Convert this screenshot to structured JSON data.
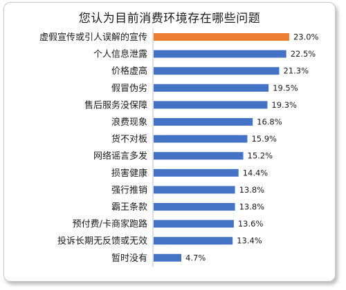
{
  "chart_data": {
    "type": "bar",
    "orientation": "horizontal",
    "title": "您认为目前消费环境存在哪些问题",
    "categories": [
      "虚假宣传或引人误解的宣传",
      "个人信息泄露",
      "价格虚高",
      "假冒伪劣",
      "售后服务没保障",
      "浪费现象",
      "货不对板",
      "网络谣言多发",
      "损害健康",
      "强行推销",
      "霸王条款",
      "预付费/卡商家跑路",
      "投诉长期无反馈或无效",
      "暂时没有"
    ],
    "values": [
      23.0,
      22.5,
      21.3,
      19.5,
      19.3,
      16.8,
      15.9,
      15.2,
      14.4,
      13.8,
      13.8,
      13.6,
      13.4,
      4.7
    ],
    "value_labels": [
      "23.0%",
      "22.5%",
      "21.3%",
      "19.5%",
      "19.3%",
      "16.8%",
      "15.9%",
      "15.2%",
      "14.4%",
      "13.8%",
      "13.8%",
      "13.6%",
      "13.4%",
      "4.7%"
    ],
    "highlight_index": 0,
    "colors": {
      "bar": "#4472c4",
      "highlight": "#ed7d31",
      "axis": "#bfbfbf"
    },
    "xlim": [
      0,
      25
    ],
    "grid": false,
    "legend": "none"
  }
}
